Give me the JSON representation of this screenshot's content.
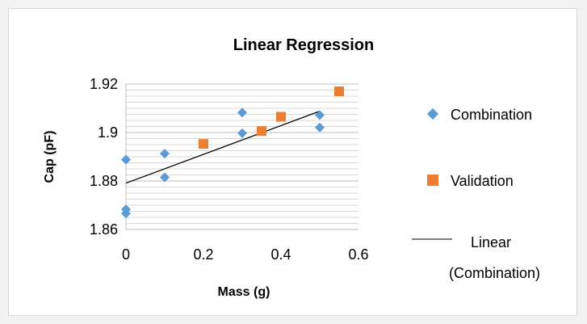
{
  "chart_data": {
    "type": "scatter",
    "title": "Linear Regression",
    "xlabel": "Mass (g)",
    "ylabel": "Cap (pF)",
    "xlim": [
      0,
      0.6
    ],
    "ylim": [
      1.86,
      1.92
    ],
    "x_ticks": [
      "0",
      "0.2",
      "0.4",
      "0.6"
    ],
    "y_ticks": [
      "1.86",
      "1.88",
      "1.9",
      "1.92"
    ],
    "grid": "horizontal",
    "legend_position": "right",
    "series": [
      {
        "name": "Combination",
        "marker": "diamond",
        "color": "#5b9bd5",
        "points": [
          {
            "x": 0,
            "y": 1.8888
          },
          {
            "x": 0,
            "y": 1.8683
          },
          {
            "x": 0,
            "y": 1.8666
          },
          {
            "x": 0.1,
            "y": 1.8913
          },
          {
            "x": 0.1,
            "y": 1.8815
          },
          {
            "x": 0.3,
            "y": 1.9082
          },
          {
            "x": 0.3,
            "y": 1.8997
          },
          {
            "x": 0.5,
            "y": 1.9072
          },
          {
            "x": 0.5,
            "y": 1.9021
          }
        ]
      },
      {
        "name": "Validation",
        "marker": "square",
        "color": "#ed7d31",
        "points": [
          {
            "x": 0.2,
            "y": 1.8953
          },
          {
            "x": 0.35,
            "y": 1.9006
          },
          {
            "x": 0.4,
            "y": 1.9065
          },
          {
            "x": 0.55,
            "y": 1.917
          }
        ]
      }
    ],
    "trendline": {
      "name": "Linear (Combination)",
      "name_line1": "Linear",
      "name_line2": "(Combination)",
      "color": "#000000",
      "x_range": [
        0,
        0.5
      ],
      "intercept": 1.8791,
      "slope": 0.0594
    }
  }
}
